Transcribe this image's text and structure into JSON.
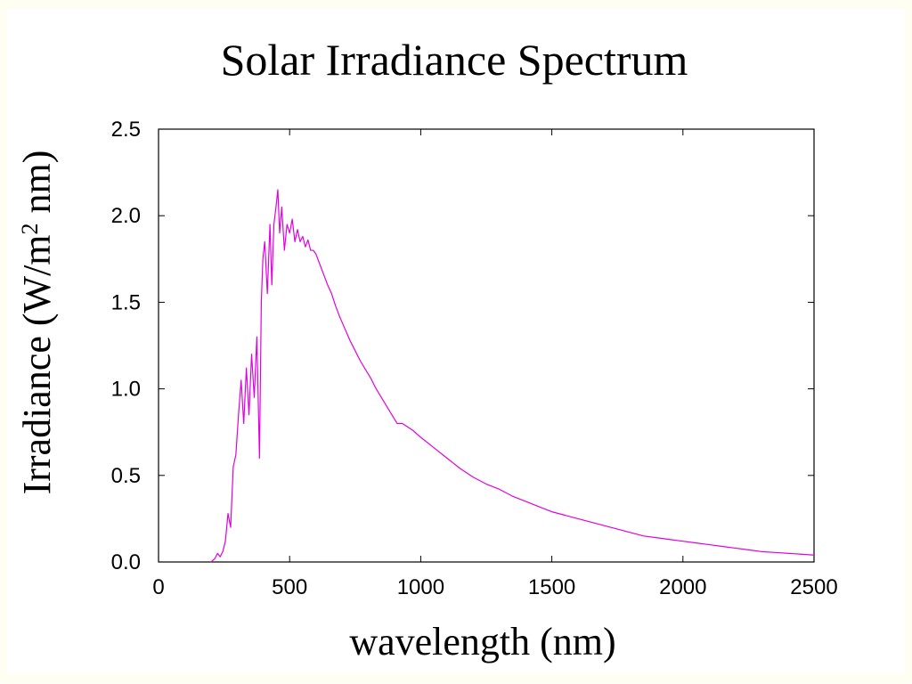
{
  "chart_data": {
    "type": "line",
    "title": "Solar Irradiance Spectrum",
    "xlabel": "wavelength (nm)",
    "ylabel": "Irradiance (W/m² nm)",
    "ylabel_parts": {
      "pre": "Irradiance (W/m",
      "sup": "2",
      "post": " nm)"
    },
    "xlim": [
      0,
      2500
    ],
    "ylim": [
      0.0,
      2.5
    ],
    "xticks": [
      0,
      500,
      1000,
      1500,
      2000,
      2500
    ],
    "xtick_labels": [
      "0",
      "500",
      "1000",
      "1500",
      "2000",
      "2500"
    ],
    "yticks": [
      0.0,
      0.5,
      1.0,
      1.5,
      2.0,
      2.5
    ],
    "ytick_labels": [
      "0.0",
      "0.5",
      "1.0",
      "1.5",
      "2.0",
      "2.5"
    ],
    "grid": false,
    "legend": "none",
    "series": [
      {
        "color": "#e100e1",
        "x": [
          200,
          215,
          225,
          235,
          245,
          255,
          265,
          275,
          285,
          295,
          305,
          315,
          325,
          335,
          345,
          355,
          365,
          375,
          385,
          392,
          398,
          405,
          415,
          425,
          432,
          440,
          448,
          455,
          462,
          470,
          480,
          490,
          500,
          510,
          520,
          530,
          540,
          550,
          560,
          570,
          580,
          590,
          600,
          615,
          630,
          645,
          660,
          675,
          690,
          710,
          730,
          750,
          770,
          790,
          810,
          830,
          850,
          870,
          890,
          910,
          930,
          950,
          970,
          1000,
          1050,
          1100,
          1150,
          1200,
          1250,
          1300,
          1350,
          1400,
          1450,
          1500,
          1550,
          1600,
          1650,
          1700,
          1750,
          1800,
          1850,
          1900,
          1950,
          2000,
          2050,
          2100,
          2150,
          2200,
          2250,
          2300,
          2350,
          2400,
          2450,
          2500
        ],
        "y": [
          0.0,
          0.02,
          0.05,
          0.03,
          0.06,
          0.12,
          0.28,
          0.2,
          0.55,
          0.62,
          0.85,
          1.05,
          0.8,
          1.12,
          0.85,
          1.2,
          0.95,
          1.3,
          0.6,
          1.5,
          1.75,
          1.85,
          1.55,
          1.95,
          1.6,
          1.95,
          2.05,
          2.15,
          1.9,
          2.05,
          1.8,
          1.95,
          1.9,
          1.98,
          1.85,
          1.92,
          1.85,
          1.88,
          1.82,
          1.86,
          1.8,
          1.8,
          1.78,
          1.72,
          1.66,
          1.6,
          1.55,
          1.48,
          1.42,
          1.35,
          1.28,
          1.22,
          1.16,
          1.11,
          1.06,
          1.0,
          0.95,
          0.9,
          0.85,
          0.8,
          0.8,
          0.78,
          0.76,
          0.72,
          0.66,
          0.6,
          0.54,
          0.49,
          0.45,
          0.42,
          0.38,
          0.35,
          0.32,
          0.29,
          0.27,
          0.25,
          0.23,
          0.21,
          0.19,
          0.17,
          0.15,
          0.14,
          0.13,
          0.12,
          0.11,
          0.1,
          0.09,
          0.08,
          0.07,
          0.06,
          0.055,
          0.05,
          0.045,
          0.04
        ]
      }
    ]
  }
}
